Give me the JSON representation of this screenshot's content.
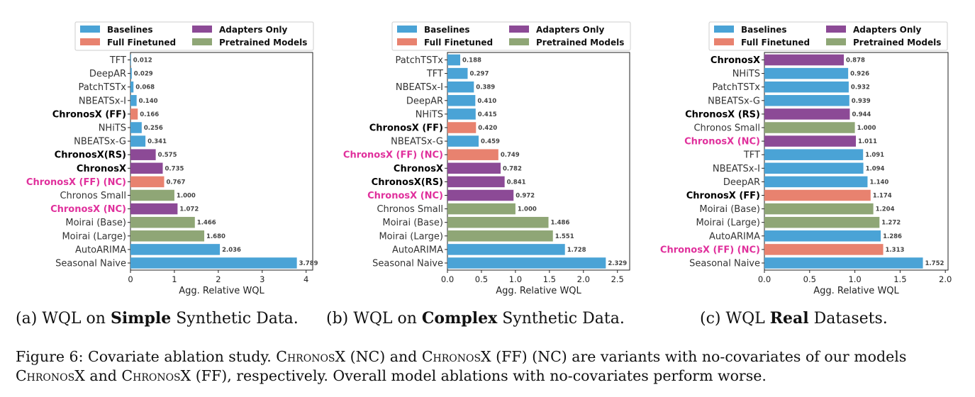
{
  "colors": {
    "Baselines": "#4aa3d6",
    "Full Finetuned": "#e8826f",
    "Adapters Only": "#8c4a96",
    "Pretrained Models": "#8fa676",
    "label_normal": "#333333",
    "label_bold": "#000000",
    "label_pink": "#e0309c"
  },
  "legend": {
    "items": [
      "Baselines",
      "Full Finetuned",
      "Adapters Only",
      "Pretrained Models"
    ]
  },
  "chart_data": [
    {
      "type": "bar",
      "orientation": "horizontal",
      "xlabel": "Agg. Relative WQL",
      "xlim": [
        0,
        4.15
      ],
      "xticks": [
        "0",
        "1",
        "2",
        "3",
        "4"
      ],
      "xtick_values": [
        0,
        1,
        2,
        3,
        4
      ],
      "legend_position": "top",
      "caption": {
        "prefix": "(a) WQL on ",
        "bold": "Simple",
        "suffix": " Synthetic Data."
      },
      "bars": [
        {
          "label": "TFT",
          "value": 0.012,
          "value_text": "0.012",
          "group": "Baselines",
          "style": "normal"
        },
        {
          "label": "DeepAR",
          "value": 0.029,
          "value_text": "0.029",
          "group": "Baselines",
          "style": "normal"
        },
        {
          "label": "PatchTSTx",
          "value": 0.068,
          "value_text": "0.068",
          "group": "Baselines",
          "style": "normal"
        },
        {
          "label": "NBEATSx-I",
          "value": 0.14,
          "value_text": "0.140",
          "group": "Baselines",
          "style": "normal"
        },
        {
          "label": "ChronosX (FF)",
          "value": 0.166,
          "value_text": "0.166",
          "group": "Full Finetuned",
          "style": "bold"
        },
        {
          "label": "NHiTS",
          "value": 0.256,
          "value_text": "0.256",
          "group": "Baselines",
          "style": "normal"
        },
        {
          "label": "NBEATSx-G",
          "value": 0.341,
          "value_text": "0.341",
          "group": "Baselines",
          "style": "normal"
        },
        {
          "label": "ChronosX(RS)",
          "value": 0.575,
          "value_text": "0.575",
          "group": "Adapters Only",
          "style": "bold"
        },
        {
          "label": "ChronosX",
          "value": 0.735,
          "value_text": "0.735",
          "group": "Adapters Only",
          "style": "bold"
        },
        {
          "label": "ChronosX (FF) (NC)",
          "value": 0.767,
          "value_text": "0.767",
          "group": "Full Finetuned",
          "style": "pink"
        },
        {
          "label": "Chronos Small",
          "value": 1.0,
          "value_text": "1.000",
          "group": "Pretrained Models",
          "style": "normal"
        },
        {
          "label": "ChronosX (NC)",
          "value": 1.072,
          "value_text": "1.072",
          "group": "Adapters Only",
          "style": "pink"
        },
        {
          "label": "Moirai (Base)",
          "value": 1.466,
          "value_text": "1.466",
          "group": "Pretrained Models",
          "style": "normal"
        },
        {
          "label": "Moirai (Large)",
          "value": 1.68,
          "value_text": "1.680",
          "group": "Pretrained Models",
          "style": "normal"
        },
        {
          "label": "AutoARIMA",
          "value": 2.036,
          "value_text": "2.036",
          "group": "Baselines",
          "style": "normal"
        },
        {
          "label": "Seasonal Naive",
          "value": 3.789,
          "value_text": "3.789",
          "group": "Baselines",
          "style": "normal"
        }
      ]
    },
    {
      "type": "bar",
      "orientation": "horizontal",
      "xlabel": "Agg. Relative WQL",
      "xlim": [
        0,
        2.68
      ],
      "xticks": [
        "0.0",
        "0.5",
        "1.0",
        "1.5",
        "2.0",
        "2.5"
      ],
      "xtick_values": [
        0,
        0.5,
        1.0,
        1.5,
        2.0,
        2.5
      ],
      "legend_position": "top",
      "caption": {
        "prefix": "(b) WQL on ",
        "bold": "Complex",
        "suffix": " Synthetic Data."
      },
      "bars": [
        {
          "label": "PatchTSTx",
          "value": 0.188,
          "value_text": "0.188",
          "group": "Baselines",
          "style": "normal"
        },
        {
          "label": "TFT",
          "value": 0.297,
          "value_text": "0.297",
          "group": "Baselines",
          "style": "normal"
        },
        {
          "label": "NBEATSx-I",
          "value": 0.389,
          "value_text": "0.389",
          "group": "Baselines",
          "style": "normal"
        },
        {
          "label": "DeepAR",
          "value": 0.41,
          "value_text": "0.410",
          "group": "Baselines",
          "style": "normal"
        },
        {
          "label": "NHiTS",
          "value": 0.415,
          "value_text": "0.415",
          "group": "Baselines",
          "style": "normal"
        },
        {
          "label": "ChronosX (FF)",
          "value": 0.42,
          "value_text": "0.420",
          "group": "Full Finetuned",
          "style": "bold"
        },
        {
          "label": "NBEATSx-G",
          "value": 0.459,
          "value_text": "0.459",
          "group": "Baselines",
          "style": "normal"
        },
        {
          "label": "ChronosX (FF) (NC)",
          "value": 0.749,
          "value_text": "0.749",
          "group": "Full Finetuned",
          "style": "pink"
        },
        {
          "label": "ChronosX",
          "value": 0.782,
          "value_text": "0.782",
          "group": "Adapters Only",
          "style": "bold"
        },
        {
          "label": "ChronosX(RS)",
          "value": 0.841,
          "value_text": "0.841",
          "group": "Adapters Only",
          "style": "bold"
        },
        {
          "label": "ChronosX (NC)",
          "value": 0.972,
          "value_text": "0.972",
          "group": "Adapters Only",
          "style": "pink"
        },
        {
          "label": "Chronos Small",
          "value": 1.0,
          "value_text": "1.000",
          "group": "Pretrained Models",
          "style": "normal"
        },
        {
          "label": "Moirai (Base)",
          "value": 1.486,
          "value_text": "1.486",
          "group": "Pretrained Models",
          "style": "normal"
        },
        {
          "label": "Moirai (Large)",
          "value": 1.551,
          "value_text": "1.551",
          "group": "Pretrained Models",
          "style": "normal"
        },
        {
          "label": "AutoARIMA",
          "value": 1.728,
          "value_text": "1.728",
          "group": "Baselines",
          "style": "normal"
        },
        {
          "label": "Seasonal Naive",
          "value": 2.329,
          "value_text": "2.329",
          "group": "Baselines",
          "style": "normal"
        }
      ]
    },
    {
      "type": "bar",
      "orientation": "horizontal",
      "xlabel": "Agg. Relative WQL",
      "xlim": [
        0,
        2.03
      ],
      "xticks": [
        "0.0",
        "0.5",
        "1.0",
        "1.5",
        "2.0"
      ],
      "xtick_values": [
        0,
        0.5,
        1.0,
        1.5,
        2.0
      ],
      "legend_position": "top",
      "caption": {
        "prefix": "(c) WQL ",
        "bold": "Real",
        "suffix": " Datasets."
      },
      "bars": [
        {
          "label": "ChronosX",
          "value": 0.878,
          "value_text": "0.878",
          "group": "Adapters Only",
          "style": "bold"
        },
        {
          "label": "NHiTS",
          "value": 0.926,
          "value_text": "0.926",
          "group": "Baselines",
          "style": "normal"
        },
        {
          "label": "PatchTSTx",
          "value": 0.932,
          "value_text": "0.932",
          "group": "Baselines",
          "style": "normal"
        },
        {
          "label": "NBEATSx-G",
          "value": 0.939,
          "value_text": "0.939",
          "group": "Baselines",
          "style": "normal"
        },
        {
          "label": "ChronosX (RS)",
          "value": 0.944,
          "value_text": "0.944",
          "group": "Adapters Only",
          "style": "bold"
        },
        {
          "label": "Chronos Small",
          "value": 1.0,
          "value_text": "1.000",
          "group": "Pretrained Models",
          "style": "normal"
        },
        {
          "label": "ChronosX (NC)",
          "value": 1.011,
          "value_text": "1.011",
          "group": "Adapters Only",
          "style": "pink"
        },
        {
          "label": "TFT",
          "value": 1.091,
          "value_text": "1.091",
          "group": "Baselines",
          "style": "normal"
        },
        {
          "label": "NBEATSx-I",
          "value": 1.094,
          "value_text": "1.094",
          "group": "Baselines",
          "style": "normal"
        },
        {
          "label": "DeepAR",
          "value": 1.14,
          "value_text": "1.140",
          "group": "Baselines",
          "style": "normal"
        },
        {
          "label": "ChronosX (FF)",
          "value": 1.174,
          "value_text": "1.174",
          "group": "Full Finetuned",
          "style": "bold"
        },
        {
          "label": "Moirai (Base)",
          "value": 1.204,
          "value_text": "1.204",
          "group": "Pretrained Models",
          "style": "normal"
        },
        {
          "label": "Moirai (Large)",
          "value": 1.272,
          "value_text": "1.272",
          "group": "Pretrained Models",
          "style": "normal"
        },
        {
          "label": "AutoARIMA",
          "value": 1.286,
          "value_text": "1.286",
          "group": "Baselines",
          "style": "normal"
        },
        {
          "label": "ChronosX (FF) (NC)",
          "value": 1.313,
          "value_text": "1.313",
          "group": "Full Finetuned",
          "style": "pink"
        },
        {
          "label": "Seasonal Naive",
          "value": 1.752,
          "value_text": "1.752",
          "group": "Baselines",
          "style": "normal"
        }
      ]
    }
  ],
  "figure_caption": {
    "label": "Figure 6:",
    "t1": " Covariate ablation study. ",
    "sc1": "ChronosX",
    "t2": " (NC) and ",
    "sc2": "ChronosX",
    "t3": " (FF) (NC) are variants with no-covariates of our models ",
    "sc3": "ChronosX",
    "t4": " and ",
    "sc4": "ChronosX",
    "t5": " (FF), respectively. Overall model ablations with no-covariates perform worse."
  }
}
